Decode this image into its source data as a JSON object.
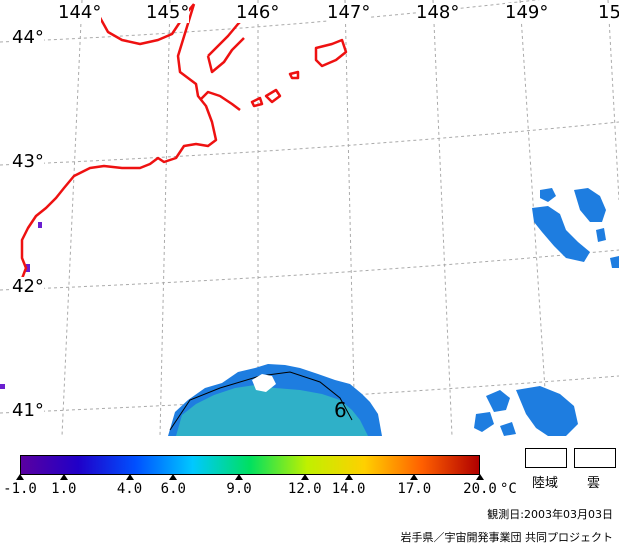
{
  "map": {
    "lat_labels": [
      "44°",
      "43°",
      "42°",
      "41°"
    ],
    "lon_labels": [
      "144°",
      "145°",
      "146°",
      "147°",
      "148°",
      "149°",
      "15"
    ],
    "contour_label": "6",
    "colors": {
      "coastline": "#ee1111",
      "grid": "#aaaaaa",
      "sst_blue": "#1e7de0",
      "sst_teal": "#2fb0c8",
      "sst_purple": "#6a1fd0"
    }
  },
  "colorbar": {
    "min": -1.0,
    "max": 20.0,
    "tick_values": [
      -1.0,
      1.0,
      4.0,
      6.0,
      9.0,
      12.0,
      14.0,
      17.0,
      20.0
    ],
    "tick_labels": [
      "-1.0",
      "1.0",
      "4.0",
      "6.0",
      "9.0",
      "12.0",
      "14.0",
      "17.0",
      "20.0"
    ],
    "unit": "°C",
    "gradient": [
      "#5a00a0",
      "#2000c8",
      "#0050ff",
      "#00c8ff",
      "#00e060",
      "#c0f000",
      "#ffd000",
      "#ff6000",
      "#b00000"
    ]
  },
  "legend": {
    "land_label": "陸域",
    "cloud_label": "雲"
  },
  "footer": {
    "observation_date": "観測日:2003年03月03日",
    "credit": "岩手県／宇宙開発事業団 共同プロジェクト"
  }
}
